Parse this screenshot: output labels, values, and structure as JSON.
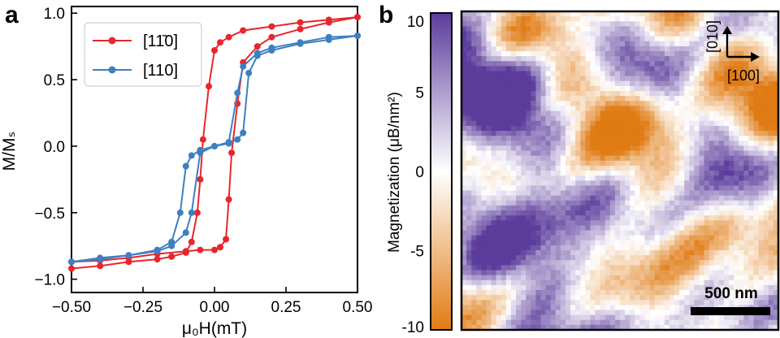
{
  "panels": {
    "a": {
      "letter": "a"
    },
    "b": {
      "letter": "b"
    }
  },
  "chart_data": [
    {
      "type": "line",
      "panel": "a",
      "xlabel": "μ₀H(mT)",
      "ylabel": "M/Mₛ",
      "xlim": [
        -0.5,
        0.5
      ],
      "ylim": [
        -1.1,
        1.05
      ],
      "xticks": [
        -0.5,
        -0.25,
        0.0,
        0.25,
        0.5
      ],
      "xtick_labels": [
        "−0.50",
        "−0.25",
        "0.00",
        "0.25",
        "0.50"
      ],
      "yticks": [
        -1.0,
        -0.5,
        0.0,
        0.5,
        1.0
      ],
      "ytick_labels": [
        "−1.0",
        "−0.5",
        "0.0",
        "0.5",
        "1.0"
      ],
      "grid": false,
      "legend_position": "top-left",
      "series": [
        {
          "name": "[11̄0]",
          "color": "#e8262b",
          "marker": "circle",
          "branches": [
            {
              "x": [
                -0.5,
                -0.4,
                -0.3,
                -0.2,
                -0.1,
                -0.05,
                0.0,
                0.02,
                0.04,
                0.05,
                0.06,
                0.08,
                0.1,
                0.15,
                0.2,
                0.3,
                0.4,
                0.5
              ],
              "y": [
                -0.87,
                -0.86,
                -0.84,
                -0.81,
                -0.79,
                -0.78,
                -0.78,
                -0.76,
                -0.7,
                -0.4,
                -0.05,
                0.32,
                0.63,
                0.75,
                0.82,
                0.88,
                0.93,
                0.97
              ]
            },
            {
              "x": [
                0.5,
                0.4,
                0.3,
                0.2,
                0.1,
                0.05,
                0.02,
                0.0,
                -0.02,
                -0.04,
                -0.05,
                -0.06,
                -0.08,
                -0.1,
                -0.15,
                -0.2,
                -0.3,
                -0.4,
                -0.5
              ],
              "y": [
                0.97,
                0.95,
                0.93,
                0.9,
                0.87,
                0.82,
                0.78,
                0.72,
                0.45,
                0.05,
                -0.25,
                -0.5,
                -0.72,
                -0.8,
                -0.83,
                -0.85,
                -0.87,
                -0.9,
                -0.92
              ]
            }
          ]
        },
        {
          "name": "[110]",
          "color": "#3e7fc1",
          "marker": "circle",
          "branches": [
            {
              "x": [
                -0.5,
                -0.4,
                -0.3,
                -0.2,
                -0.15,
                -0.1,
                -0.08,
                -0.05,
                0.0,
                0.05,
                0.08,
                0.1,
                0.12,
                0.15,
                0.2,
                0.3,
                0.4,
                0.5
              ],
              "y": [
                -0.87,
                -0.84,
                -0.82,
                -0.79,
                -0.75,
                -0.65,
                -0.5,
                -0.05,
                0.0,
                0.02,
                0.05,
                0.1,
                0.55,
                0.68,
                0.72,
                0.77,
                0.8,
                0.83
              ]
            },
            {
              "x": [
                0.5,
                0.4,
                0.3,
                0.2,
                0.15,
                0.1,
                0.08,
                0.05,
                0.0,
                -0.05,
                -0.08,
                -0.1,
                -0.12,
                -0.15,
                -0.2,
                -0.3,
                -0.4,
                -0.5
              ],
              "y": [
                0.83,
                0.82,
                0.78,
                0.74,
                0.7,
                0.6,
                0.4,
                0.03,
                0.0,
                -0.03,
                -0.07,
                -0.15,
                -0.5,
                -0.72,
                -0.78,
                -0.82,
                -0.85,
                -0.87
              ]
            }
          ]
        }
      ]
    },
    {
      "type": "heatmap",
      "panel": "b",
      "colorbar_label": "Magnetization (μB/nm²)",
      "colorbar_ticks": [
        10,
        5,
        0,
        -5,
        -10
      ],
      "colorbar_tick_labels": [
        "10",
        "5",
        "0",
        "-5",
        "-10"
      ],
      "zlim": [
        -10,
        10
      ],
      "colormap": {
        "high": "#5b3c9b",
        "mid": "#ffffff",
        "low": "#e07b14"
      },
      "grid_size": [
        64,
        64
      ],
      "scale_bar_label": "500 nm",
      "axis_labels": {
        "x_direction": "[100]",
        "y_direction": "[010]"
      }
    }
  ]
}
